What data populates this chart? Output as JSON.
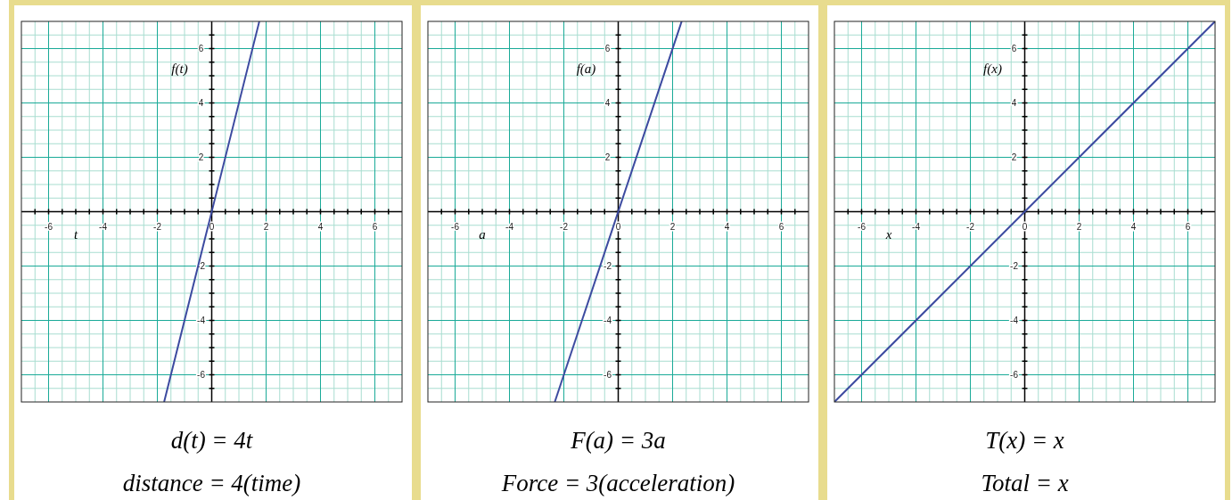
{
  "chart_data": [
    {
      "type": "line",
      "title": "d(t) = 4t",
      "subtitle": "distance = 4(time)",
      "xlabel": "t",
      "ylabel": "f(t)",
      "x": [
        -1.75,
        1.75
      ],
      "series": [
        {
          "color": "#3c4aa0",
          "values": [
            -7,
            7
          ]
        }
      ],
      "xlim": [
        -7,
        7
      ],
      "ylim": [
        -7,
        7
      ],
      "xticks": [
        {
          "value": -6.5,
          "label": null
        },
        -6,
        {
          "value": -5.5,
          "label": null
        },
        {
          "value": -5,
          "label": null
        },
        {
          "value": -4.5,
          "label": null
        },
        -4,
        {
          "value": -3.5,
          "label": null
        },
        {
          "value": -3,
          "label": null
        },
        {
          "value": -2.5,
          "label": null
        },
        -2,
        {
          "value": -1.5,
          "label": null
        },
        {
          "value": -1,
          "label": null
        },
        {
          "value": -0.5,
          "label": null
        },
        0,
        {
          "value": 0.5,
          "label": null
        },
        {
          "value": 1,
          "label": null
        },
        {
          "value": 1.5,
          "label": null
        },
        2,
        {
          "value": 2.5,
          "label": null
        },
        {
          "value": 3,
          "label": null
        },
        {
          "value": 3.5,
          "label": null
        },
        4,
        {
          "value": 4.5,
          "label": null
        },
        {
          "value": 5,
          "label": null
        },
        {
          "value": 5.5,
          "label": null
        },
        6,
        {
          "value": 6.5,
          "label": null
        }
      ],
      "yticks": [
        {
          "value": -6.5,
          "label": null
        },
        -6,
        {
          "value": -5.5,
          "label": null
        },
        {
          "value": -5,
          "label": null
        },
        {
          "value": -4.5,
          "label": null
        },
        -4,
        {
          "value": -3.5,
          "label": null
        },
        {
          "value": -3,
          "label": null
        },
        {
          "value": -2.5,
          "label": null
        },
        -2,
        {
          "value": -1.5,
          "label": null
        },
        {
          "value": -1,
          "label": null
        },
        {
          "value": -0.5,
          "label": null
        },
        {
          "value": 0,
          "label": null
        },
        {
          "value": 0.5,
          "label": null
        },
        {
          "value": 1,
          "label": null
        },
        {
          "value": 1.5,
          "label": null
        },
        2,
        {
          "value": 2.5,
          "label": null
        },
        {
          "value": 3,
          "label": null
        },
        {
          "value": 3.5,
          "label": null
        },
        4,
        {
          "value": 4.5,
          "label": null
        },
        {
          "value": 5,
          "label": null
        },
        {
          "value": 5.5,
          "label": null
        },
        6,
        {
          "value": 6.5,
          "label": null
        }
      ],
      "grid": true
    },
    {
      "type": "line",
      "title": "F(a) = 3a",
      "subtitle": "Force = 3(acceleration)",
      "xlabel": "a",
      "ylabel": "f(a)",
      "x": [
        -2.333,
        2.333
      ],
      "series": [
        {
          "color": "#3c4aa0",
          "values": [
            -7,
            7
          ]
        }
      ],
      "xlim": [
        -7,
        7
      ],
      "ylim": [
        -7,
        7
      ],
      "xticks": [
        {
          "value": -6.5,
          "label": null
        },
        -6,
        {
          "value": -5.5,
          "label": null
        },
        {
          "value": -5,
          "label": null
        },
        {
          "value": -4.5,
          "label": null
        },
        -4,
        {
          "value": -3.5,
          "label": null
        },
        {
          "value": -3,
          "label": null
        },
        {
          "value": -2.5,
          "label": null
        },
        -2,
        {
          "value": -1.5,
          "label": null
        },
        {
          "value": -1,
          "label": null
        },
        {
          "value": -0.5,
          "label": null
        },
        0,
        {
          "value": 0.5,
          "label": null
        },
        {
          "value": 1,
          "label": null
        },
        {
          "value": 1.5,
          "label": null
        },
        2,
        {
          "value": 2.5,
          "label": null
        },
        {
          "value": 3,
          "label": null
        },
        {
          "value": 3.5,
          "label": null
        },
        4,
        {
          "value": 4.5,
          "label": null
        },
        {
          "value": 5,
          "label": null
        },
        {
          "value": 5.5,
          "label": null
        },
        6,
        {
          "value": 6.5,
          "label": null
        }
      ],
      "yticks": [
        {
          "value": -6.5,
          "label": null
        },
        -6,
        {
          "value": -5.5,
          "label": null
        },
        {
          "value": -5,
          "label": null
        },
        {
          "value": -4.5,
          "label": null
        },
        -4,
        {
          "value": -3.5,
          "label": null
        },
        {
          "value": -3,
          "label": null
        },
        {
          "value": -2.5,
          "label": null
        },
        -2,
        {
          "value": -1.5,
          "label": null
        },
        {
          "value": -1,
          "label": null
        },
        {
          "value": -0.5,
          "label": null
        },
        {
          "value": 0,
          "label": null
        },
        {
          "value": 0.5,
          "label": null
        },
        {
          "value": 1,
          "label": null
        },
        {
          "value": 1.5,
          "label": null
        },
        2,
        {
          "value": 2.5,
          "label": null
        },
        {
          "value": 3,
          "label": null
        },
        {
          "value": 3.5,
          "label": null
        },
        4,
        {
          "value": 4.5,
          "label": null
        },
        {
          "value": 5,
          "label": null
        },
        {
          "value": 5.5,
          "label": null
        },
        6,
        {
          "value": 6.5,
          "label": null
        }
      ],
      "grid": true
    },
    {
      "type": "line",
      "title": "T(x) = x",
      "subtitle": "Total = x",
      "xlabel": "x",
      "ylabel": "f(x)",
      "x": [
        -7,
        7
      ],
      "series": [
        {
          "color": "#3c4aa0",
          "values": [
            -7,
            7
          ]
        }
      ],
      "xlim": [
        -7,
        7
      ],
      "ylim": [
        -7,
        7
      ],
      "xticks": [
        {
          "value": -6.5,
          "label": null
        },
        -6,
        {
          "value": -5.5,
          "label": null
        },
        {
          "value": -5,
          "label": null
        },
        {
          "value": -4.5,
          "label": null
        },
        -4,
        {
          "value": -3.5,
          "label": null
        },
        {
          "value": -3,
          "label": null
        },
        {
          "value": -2.5,
          "label": null
        },
        -2,
        {
          "value": -1.5,
          "label": null
        },
        {
          "value": -1,
          "label": null
        },
        {
          "value": -0.5,
          "label": null
        },
        0,
        {
          "value": 0.5,
          "label": null
        },
        {
          "value": 1,
          "label": null
        },
        {
          "value": 1.5,
          "label": null
        },
        2,
        {
          "value": 2.5,
          "label": null
        },
        {
          "value": 3,
          "label": null
        },
        {
          "value": 3.5,
          "label": null
        },
        4,
        {
          "value": 4.5,
          "label": null
        },
        {
          "value": 5,
          "label": null
        },
        {
          "value": 5.5,
          "label": null
        },
        6,
        {
          "value": 6.5,
          "label": null
        }
      ],
      "yticks": [
        {
          "value": -6.5,
          "label": null
        },
        -6,
        {
          "value": -5.5,
          "label": null
        },
        {
          "value": -5,
          "label": null
        },
        {
          "value": -4.5,
          "label": null
        },
        -4,
        {
          "value": -3.5,
          "label": null
        },
        {
          "value": -3,
          "label": null
        },
        {
          "value": -2.5,
          "label": null
        },
        -2,
        {
          "value": -1.5,
          "label": null
        },
        {
          "value": -1,
          "label": null
        },
        {
          "value": -0.5,
          "label": null
        },
        {
          "value": 0,
          "label": null
        },
        {
          "value": 0.5,
          "label": null
        },
        {
          "value": 1,
          "label": null
        },
        {
          "value": 1.5,
          "label": null
        },
        2,
        {
          "value": 2.5,
          "label": null
        },
        {
          "value": 3,
          "label": null
        },
        {
          "value": 3.5,
          "label": null
        },
        4,
        {
          "value": 4.5,
          "label": null
        },
        {
          "value": 5,
          "label": null
        },
        {
          "value": 5.5,
          "label": null
        },
        6,
        {
          "value": 6.5,
          "label": null
        }
      ],
      "grid": true
    }
  ]
}
